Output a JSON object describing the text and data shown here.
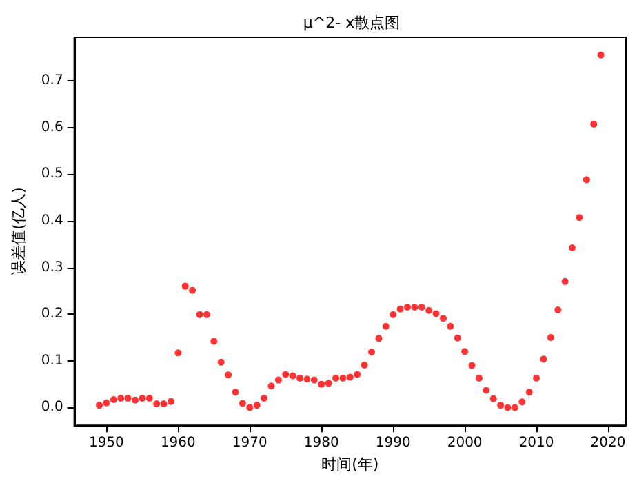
{
  "chart_data": {
    "type": "scatter",
    "title": "μ^2- x散点图",
    "xlabel": "时间(年)",
    "ylabel": "误差值(亿人)",
    "x": [
      1949,
      1950,
      1951,
      1952,
      1953,
      1954,
      1955,
      1956,
      1957,
      1958,
      1959,
      1960,
      1961,
      1962,
      1963,
      1964,
      1965,
      1966,
      1967,
      1968,
      1969,
      1970,
      1971,
      1972,
      1973,
      1974,
      1975,
      1976,
      1977,
      1978,
      1979,
      1980,
      1981,
      1982,
      1983,
      1984,
      1985,
      1986,
      1987,
      1988,
      1989,
      1990,
      1991,
      1992,
      1993,
      1994,
      1995,
      1996,
      1997,
      1998,
      1999,
      2000,
      2001,
      2002,
      2003,
      2004,
      2005,
      2006,
      2007,
      2008,
      2009,
      2010,
      2011,
      2012,
      2013,
      2014,
      2015,
      2016,
      2017,
      2018,
      2019
    ],
    "series": [
      {
        "color": "#ff0000",
        "values": [
          0.005,
          0.01,
          0.017,
          0.02,
          0.02,
          0.016,
          0.02,
          0.02,
          0.008,
          0.008,
          0.013,
          0.117,
          0.26,
          0.251,
          0.199,
          0.199,
          0.142,
          0.097,
          0.07,
          0.033,
          0.009,
          0.0,
          0.005,
          0.02,
          0.046,
          0.059,
          0.071,
          0.068,
          0.063,
          0.061,
          0.059,
          0.05,
          0.052,
          0.063,
          0.063,
          0.065,
          0.071,
          0.091,
          0.119,
          0.148,
          0.174,
          0.199,
          0.211,
          0.215,
          0.215,
          0.215,
          0.208,
          0.201,
          0.191,
          0.174,
          0.149,
          0.12,
          0.09,
          0.063,
          0.037,
          0.019,
          0.005,
          0.0,
          0.0,
          0.012,
          0.033,
          0.063,
          0.104,
          0.15,
          0.209,
          0.27,
          0.342,
          0.407,
          0.488,
          0.607,
          0.755
        ]
      }
    ],
    "xlim": [
      1945.5,
      2022.5
    ],
    "xticks": [
      1950,
      1960,
      1970,
      1980,
      1990,
      2000,
      2010,
      2020
    ],
    "ylim": [
      -0.038,
      0.793
    ],
    "yticks": [
      {
        "value": 0,
        "label": "0.0"
      },
      0.1,
      0.2,
      0.3,
      0.4,
      0.5,
      0.6,
      0.7
    ],
    "marker": "circle",
    "grid": false
  }
}
